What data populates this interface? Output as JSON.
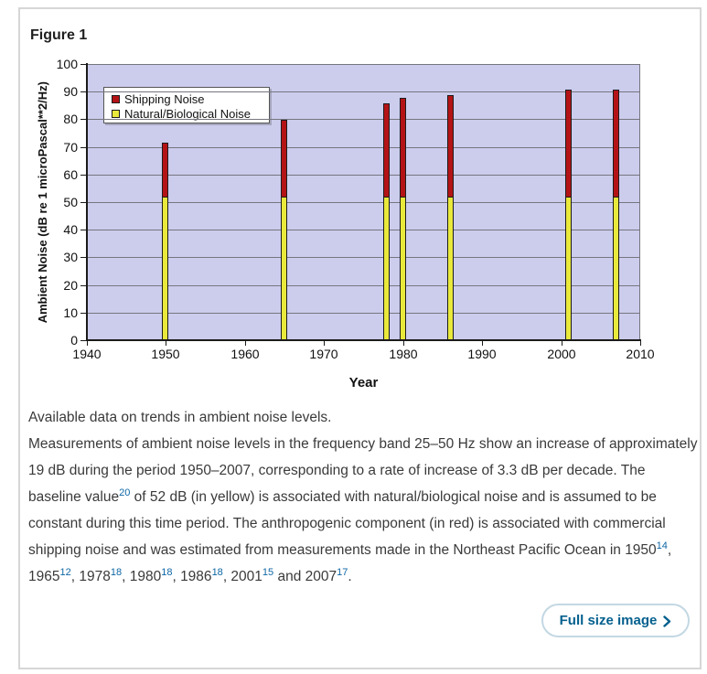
{
  "figure": {
    "title": "Figure 1"
  },
  "chart_data": {
    "type": "bar",
    "stacked": true,
    "title": "",
    "xlabel": "Year",
    "ylabel": "Ambient Noise (dB re 1 microPascal**2/Hz)",
    "xlim": [
      1940,
      2010
    ],
    "ylim": [
      0,
      100
    ],
    "x_ticks": [
      1940,
      1950,
      1960,
      1970,
      1980,
      1990,
      2000,
      2010
    ],
    "y_ticks": [
      0,
      10,
      20,
      30,
      40,
      50,
      60,
      70,
      80,
      90,
      100
    ],
    "categories": [
      1950,
      1965,
      1978,
      1980,
      1986,
      2001,
      2007
    ],
    "series": [
      {
        "name": "Shipping Noise",
        "color": "#b41316",
        "values": [
          20,
          28,
          34,
          36,
          37,
          39,
          39
        ]
      },
      {
        "name": "Natural/Biological Noise",
        "color": "#e9e93c",
        "values": [
          52,
          52,
          52,
          52,
          52,
          52,
          52
        ]
      }
    ],
    "totals": [
      72,
      80,
      86,
      88,
      89,
      91,
      91
    ],
    "legend_position": "top-left-inside",
    "grid": true,
    "plot_bg": "#cccced",
    "grid_color": "#76767f"
  },
  "caption": {
    "intro": "Available data on trends in ambient noise levels.",
    "segments": [
      {
        "t": "Measurements of ambient noise levels in the frequency band 25–50 Hz show an increase of approximately 19 dB during the period 1950–2007, corresponding to a rate of increase of 3.3 dB per decade. The baseline value"
      },
      {
        "sup": "20"
      },
      {
        "t": " of 52 dB (in yellow) is associated with natural/biological noise and is assumed to be constant during this time period. The anthropogenic component (in red) is associated with commercial shipping noise and was estimated from measurements made in the Northeast Pacific Ocean in 1950"
      },
      {
        "sup": "14"
      },
      {
        "t": ", 1965"
      },
      {
        "sup": "12"
      },
      {
        "t": ", 1978"
      },
      {
        "sup": "18"
      },
      {
        "t": ", 1980"
      },
      {
        "sup": "18"
      },
      {
        "t": ", 1986"
      },
      {
        "sup": "18"
      },
      {
        "t": ", 2001"
      },
      {
        "sup": "15"
      },
      {
        "t": " and 2007"
      },
      {
        "sup": "17"
      },
      {
        "t": "."
      }
    ]
  },
  "actions": {
    "full_size_label": "Full size image"
  },
  "colors": {
    "card_border": "#d6d6d6",
    "axis": "#1a1a1a",
    "caption_text": "#3a3a3a",
    "link_blue": "#0d66a5",
    "button_border": "#c3d8e3",
    "button_text": "#04608e"
  }
}
